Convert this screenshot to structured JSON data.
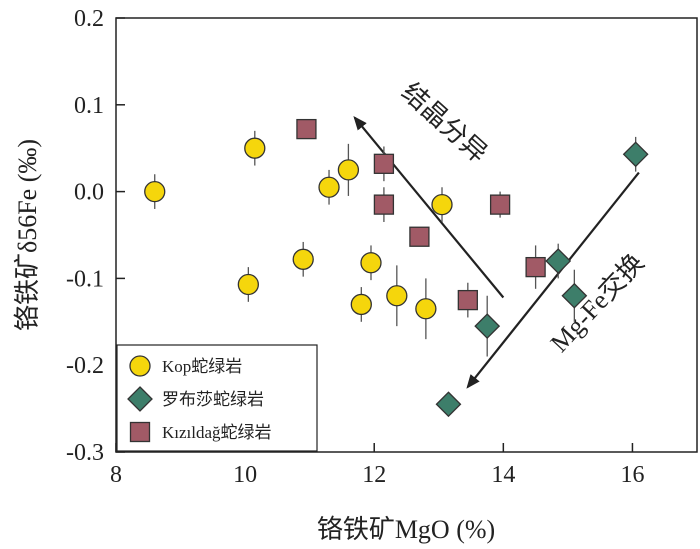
{
  "chart_data": {
    "type": "scatter",
    "xlabel": "铬铁矿MgO (%)",
    "ylabel": "铬铁矿δ56Fe (‰)",
    "xlim": [
      8,
      17
    ],
    "ylim": [
      -0.3,
      0.2
    ],
    "x_ticks": [
      8,
      10,
      12,
      14,
      16
    ],
    "y_ticks": [
      -0.3,
      -0.2,
      -0.1,
      0.0,
      0.1,
      0.2
    ],
    "x_tick_labels": [
      "8",
      "10",
      "12",
      "14",
      "16"
    ],
    "y_tick_labels": [
      "-0.3",
      "-0.2",
      "-0.1",
      "0.0",
      "0.1",
      "0.2"
    ],
    "grid": false,
    "legend_position": "bottom-left",
    "series": [
      {
        "name": "Kop蛇绿岩",
        "marker": "circle",
        "color": "#f5d60c",
        "points": [
          {
            "x": 8.6,
            "y": 0.0,
            "err": 0.02
          },
          {
            "x": 10.05,
            "y": -0.107,
            "err": 0.02
          },
          {
            "x": 10.15,
            "y": 0.05,
            "err": 0.02
          },
          {
            "x": 10.9,
            "y": -0.078,
            "err": 0.02
          },
          {
            "x": 11.3,
            "y": 0.005,
            "err": 0.02
          },
          {
            "x": 11.6,
            "y": 0.025,
            "err": 0.03
          },
          {
            "x": 11.8,
            "y": -0.13,
            "err": 0.02
          },
          {
            "x": 11.95,
            "y": -0.082,
            "err": 0.02
          },
          {
            "x": 12.35,
            "y": -0.12,
            "err": 0.035
          },
          {
            "x": 12.8,
            "y": -0.135,
            "err": 0.035
          },
          {
            "x": 13.05,
            "y": -0.015,
            "err": 0.02
          }
        ]
      },
      {
        "name": "罗布莎蛇绿岩",
        "marker": "diamond",
        "color": "#3d7e6a",
        "points": [
          {
            "x": 13.15,
            "y": -0.245,
            "err": 0.0
          },
          {
            "x": 13.75,
            "y": -0.155,
            "err": 0.035
          },
          {
            "x": 14.85,
            "y": -0.08,
            "err": 0.02
          },
          {
            "x": 15.1,
            "y": -0.12,
            "err": 0.03
          },
          {
            "x": 16.05,
            "y": 0.043,
            "err": 0.02
          }
        ]
      },
      {
        "name": "Kızıldağ蛇绿岩",
        "marker": "square",
        "color": "#a15a66",
        "points": [
          {
            "x": 10.95,
            "y": 0.072,
            "err": 0.0
          },
          {
            "x": 12.15,
            "y": -0.015,
            "err": 0.02
          },
          {
            "x": 12.15,
            "y": 0.032,
            "err": 0.02
          },
          {
            "x": 12.7,
            "y": -0.052,
            "err": 0.0
          },
          {
            "x": 13.45,
            "y": -0.125,
            "err": 0.02
          },
          {
            "x": 13.95,
            "y": -0.015,
            "err": 0.015
          },
          {
            "x": 14.5,
            "y": -0.087,
            "err": 0.025
          }
        ]
      }
    ],
    "annotations": [
      {
        "text": "结晶分异",
        "from": [
          14.0,
          -0.122
        ],
        "to": [
          11.7,
          0.085
        ],
        "text_at": [
          13.0,
          0.072
        ],
        "angle": 42
      },
      {
        "text": "Mg-Fe交换",
        "from": [
          16.1,
          0.022
        ],
        "to": [
          13.45,
          -0.225
        ],
        "text_at": [
          15.55,
          -0.135
        ],
        "angle": -47
      }
    ]
  }
}
